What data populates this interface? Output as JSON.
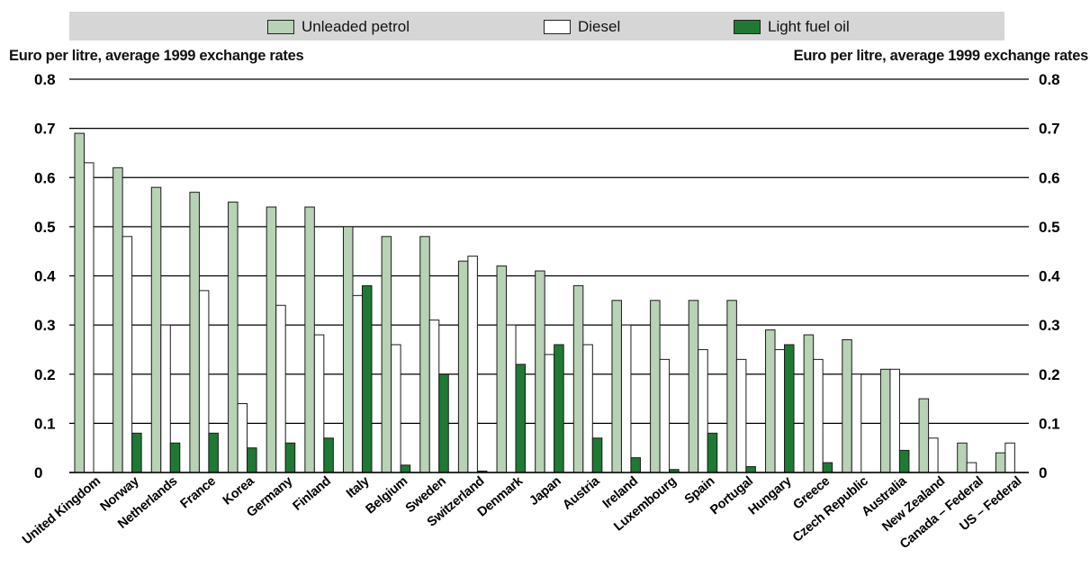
{
  "legend": {
    "items": [
      {
        "label": "Unleaded petrol",
        "color": "#b8d2b5"
      },
      {
        "label": "Diesel",
        "color": "#ffffff"
      },
      {
        "label": "Light fuel oil",
        "color": "#1e7a33"
      }
    ]
  },
  "axis": {
    "left_title": "Euro per litre, average 1999 exchange rates",
    "right_title": "Euro per litre, average 1999 exchange rates"
  },
  "chart_data": {
    "type": "bar",
    "ylim": [
      0,
      0.8
    ],
    "yticks": [
      0,
      0.1,
      0.2,
      0.3,
      0.4,
      0.5,
      0.6,
      0.7,
      0.8
    ],
    "ytick_labels": [
      "0",
      "0.1",
      "0.2",
      "0.3",
      "0.4",
      "0.5",
      "0.6",
      "0.7",
      "0.8"
    ],
    "grid": true,
    "legend_position": "top",
    "categories": [
      "United Kingdom",
      "Norway",
      "Netherlands",
      "France",
      "Korea",
      "Germany",
      "Finland",
      "Italy",
      "Belgium",
      "Sweden",
      "Switzerland",
      "Denmark",
      "Japan",
      "Austria",
      "Ireland",
      "Luxembourg",
      "Spain",
      "Portugal",
      "Hungary",
      "Greece",
      "Czech Republic",
      "Australia",
      "New Zealand",
      "Canada – Federal",
      "US – Federal"
    ],
    "series": [
      {
        "name": "Unleaded petrol",
        "color": "#b8d2b5",
        "values": [
          0.69,
          0.62,
          0.58,
          0.57,
          0.55,
          0.54,
          0.54,
          0.5,
          0.48,
          0.48,
          0.43,
          0.42,
          0.41,
          0.38,
          0.35,
          0.35,
          0.35,
          0.35,
          0.29,
          0.28,
          0.27,
          0.21,
          0.15,
          0.06,
          0.04
        ]
      },
      {
        "name": "Diesel",
        "color": "#ffffff",
        "values": [
          0.63,
          0.48,
          0.3,
          0.37,
          0.14,
          0.34,
          0.28,
          0.36,
          0.26,
          0.31,
          0.44,
          0.3,
          0.24,
          0.26,
          0.3,
          0.23,
          0.25,
          0.23,
          0.25,
          0.23,
          0.2,
          0.21,
          0.07,
          0.02,
          0.06
        ]
      },
      {
        "name": "Light fuel oil",
        "color": "#1e7a33",
        "values": [
          0.0,
          0.08,
          0.06,
          0.08,
          0.05,
          0.06,
          0.07,
          0.38,
          0.015,
          0.2,
          0.003,
          0.22,
          0.26,
          0.07,
          0.03,
          0.006,
          0.08,
          0.012,
          0.26,
          0.02,
          0.0,
          0.045,
          0.0,
          0.0,
          0.0
        ]
      }
    ]
  }
}
